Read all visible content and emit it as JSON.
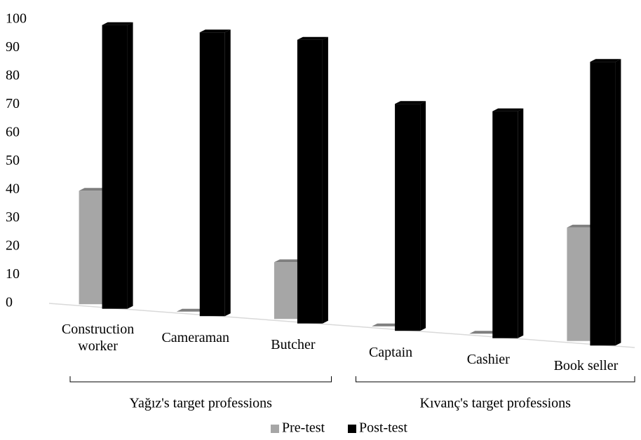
{
  "chart_data": {
    "type": "bar",
    "categories": [
      "Construction worker",
      "Cameraman",
      "Butcher",
      "Captain",
      "Cashier",
      "Book seller"
    ],
    "groups": [
      {
        "label": "Yağız's target professions",
        "span": [
          0,
          2
        ]
      },
      {
        "label": "Kıvanç's target professions",
        "span": [
          3,
          5
        ]
      }
    ],
    "series": [
      {
        "name": "Pre-test",
        "color": "#a6a6a6",
        "values": [
          40,
          0,
          20,
          0,
          0,
          40
        ]
      },
      {
        "name": "Post-test",
        "color": "#000000",
        "values": [
          100,
          100,
          100,
          80,
          80,
          100
        ]
      }
    ],
    "ylim": [
      0,
      100
    ],
    "yticks": [
      0,
      10,
      20,
      30,
      40,
      50,
      60,
      70,
      80,
      90,
      100
    ],
    "grid": false,
    "legend": "bottom"
  }
}
